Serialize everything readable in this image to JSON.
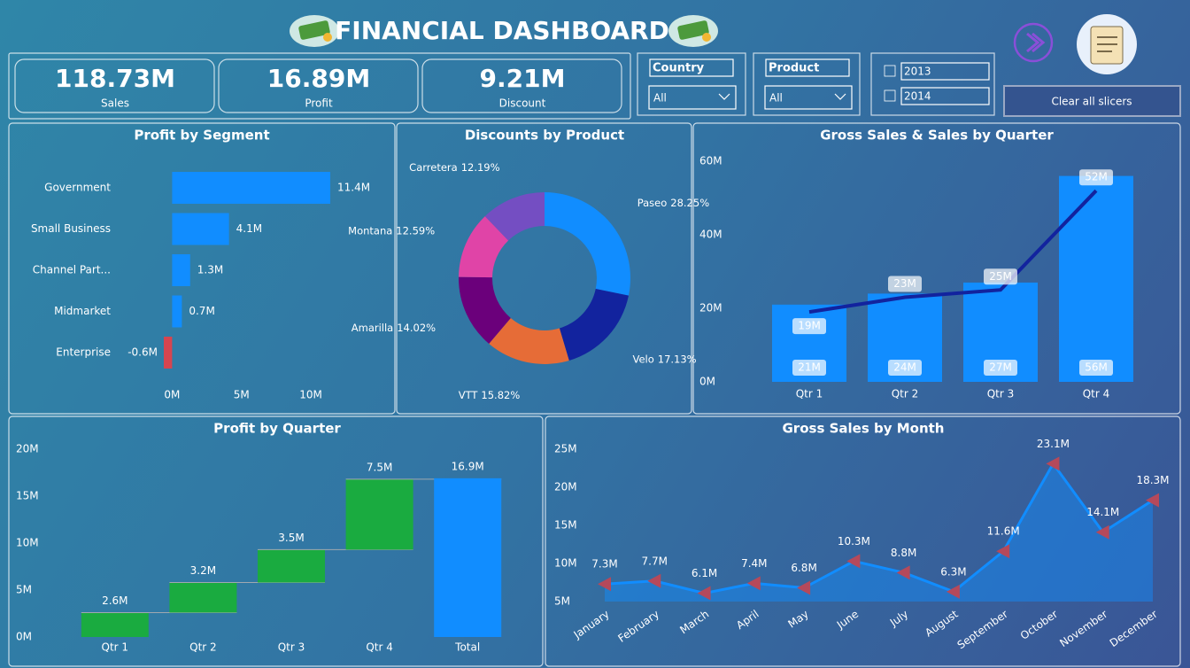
{
  "header": {
    "title": "FINANCIAL DASHBOARD"
  },
  "kpis": [
    {
      "value": "118.73M",
      "label": "Sales"
    },
    {
      "value": "16.89M",
      "label": "Profit"
    },
    {
      "value": "9.21M",
      "label": "Discount"
    }
  ],
  "slicers": {
    "country": {
      "label": "Country",
      "value": "All"
    },
    "product": {
      "label": "Product",
      "value": "All"
    },
    "years": [
      "2013",
      "2014"
    ],
    "clear": "Clear all slicers"
  },
  "chart_data": [
    {
      "type": "hbar",
      "title": "Profit by Segment",
      "categories": [
        "Government",
        "Small Business",
        "Channel Part...",
        "Midmarket",
        "Enterprise"
      ],
      "values": [
        11.4,
        4.1,
        1.3,
        0.7,
        -0.6
      ],
      "value_labels": [
        "11.4M",
        "4.1M",
        "1.3M",
        "0.7M",
        "-0.6M"
      ],
      "color": "#118dff",
      "negative_color": "#d64550",
      "xlim": [
        -0.6,
        11.4
      ],
      "xticks": [
        {
          "value": 0,
          "label": "0M"
        },
        {
          "value": 5,
          "label": "5M"
        },
        {
          "value": 10,
          "label": "10M"
        }
      ]
    },
    {
      "type": "donut",
      "title": "Discounts by Product",
      "categories": [
        "Paseo",
        "Velo",
        "VTT",
        "Amarilla",
        "Montana",
        "Carretera"
      ],
      "values": [
        28.25,
        17.13,
        15.82,
        14.02,
        12.59,
        12.19
      ],
      "value_labels": [
        "28.25%",
        "17.13%",
        "15.82%",
        "14.02%",
        "12.59%",
        "12.19%"
      ],
      "colors": [
        "#118dff",
        "#12239e",
        "#e66c37",
        "#6b007b",
        "#e044a7",
        "#744ec2"
      ]
    },
    {
      "type": "combo",
      "title": "Gross Sales & Sales by Quarter",
      "categories": [
        "Qtr 1",
        "Qtr 2",
        "Qtr 3",
        "Qtr 4"
      ],
      "series": [
        {
          "kind": "bar",
          "color": "#118dff",
          "values": [
            21,
            24,
            27,
            56
          ],
          "value_labels": [
            "21M",
            "24M",
            "27M",
            "56M"
          ]
        },
        {
          "kind": "line",
          "color": "#12239e",
          "values": [
            19,
            23,
            25,
            52
          ],
          "value_labels": [
            "19M",
            "23M",
            "25M",
            "52M"
          ]
        }
      ],
      "ylim": [
        0,
        60
      ],
      "yticks": [
        {
          "value": 0,
          "label": "0M"
        },
        {
          "value": 20,
          "label": "20M"
        },
        {
          "value": 40,
          "label": "40M"
        },
        {
          "value": 60,
          "label": "60M"
        }
      ]
    },
    {
      "type": "waterfall",
      "title": "Profit by Quarter",
      "categories": [
        "Qtr 1",
        "Qtr 2",
        "Qtr 3",
        "Qtr 4",
        "Total"
      ],
      "values": [
        2.6,
        3.2,
        3.5,
        7.5,
        16.9
      ],
      "value_labels": [
        "2.6M",
        "3.2M",
        "3.5M",
        "7.5M",
        "16.9M"
      ],
      "color": "#1aab40",
      "total_color": "#118dff",
      "ylim": [
        0,
        20
      ],
      "yticks": [
        {
          "value": 0,
          "label": "0M"
        },
        {
          "value": 5,
          "label": "5M"
        },
        {
          "value": 10,
          "label": "10M"
        },
        {
          "value": 15,
          "label": "15M"
        },
        {
          "value": 20,
          "label": "20M"
        }
      ]
    },
    {
      "type": "area",
      "title": "Gross Sales by Month",
      "categories": [
        "January",
        "February",
        "March",
        "April",
        "May",
        "June",
        "July",
        "August",
        "September",
        "October",
        "November",
        "December"
      ],
      "values": [
        7.3,
        7.7,
        6.1,
        7.4,
        6.8,
        10.3,
        8.8,
        6.3,
        11.6,
        23.1,
        14.1,
        18.3
      ],
      "value_labels": [
        "7.3M",
        "7.7M",
        "6.1M",
        "7.4M",
        "6.8M",
        "10.3M",
        "8.8M",
        "6.3M",
        "11.6M",
        "23.1M",
        "14.1M",
        "18.3M"
      ],
      "color": "#118dff",
      "marker_color": "#b5495b",
      "ylim": [
        5,
        25
      ],
      "yticks": [
        {
          "value": 5,
          "label": "5M"
        },
        {
          "value": 10,
          "label": "10M"
        },
        {
          "value": 15,
          "label": "15M"
        },
        {
          "value": 20,
          "label": "20M"
        },
        {
          "value": 25,
          "label": "25M"
        }
      ]
    }
  ]
}
